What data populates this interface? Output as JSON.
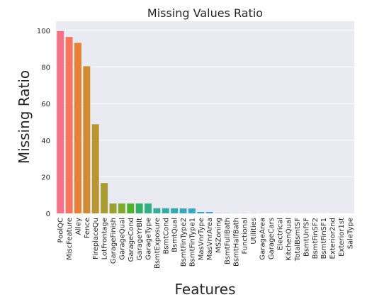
{
  "chart_data": {
    "type": "bar",
    "title": "Missing Values Ratio",
    "xlabel": "Features",
    "ylabel": "Missing Ratio",
    "ylim": [
      0,
      105
    ],
    "yticks": [
      0,
      20,
      40,
      60,
      80,
      100
    ],
    "grid": true,
    "background": "#eaeaf2",
    "categories": [
      "PoolQC",
      "MiscFeature",
      "Alley",
      "Fence",
      "FireplaceQu",
      "LotFrontage",
      "GarageFinish",
      "GarageQual",
      "GarageCond",
      "GarageYrBlt",
      "GarageType",
      "BsmtExposure",
      "BsmtCond",
      "BsmtQual",
      "BsmtFinType2",
      "BsmtFinType1",
      "MasVnrType",
      "MasVnrArea",
      "MSZoning",
      "BsmtFullBath",
      "BsmtHalfBath",
      "Functional",
      "Utilities",
      "GarageArea",
      "GarageCars",
      "Electrical",
      "KitchenQual",
      "TotalBsmtSF",
      "BsmtUnfSF",
      "BsmtFinSF2",
      "BsmtFinSF1",
      "Exterior2nd",
      "Exterior1st",
      "SaleType"
    ],
    "values": [
      99.7,
      96.4,
      93.2,
      80.4,
      48.7,
      16.6,
      5.4,
      5.4,
      5.4,
      5.4,
      5.4,
      2.8,
      2.8,
      2.8,
      2.7,
      2.7,
      0.8,
      0.8,
      0.1,
      0.1,
      0.1,
      0.1,
      0.1,
      0.03,
      0.03,
      0.03,
      0.03,
      0.03,
      0.03,
      0.03,
      0.03,
      0.03,
      0.03,
      0.03
    ],
    "colors": [
      "#f77189",
      "#f7745d",
      "#e98133",
      "#cf8c32",
      "#bb9532",
      "#a99c31",
      "#97a231",
      "#7fa931",
      "#50b131",
      "#32b166",
      "#34af84",
      "#35ad95",
      "#36aba3",
      "#37aaaf",
      "#38a8ba",
      "#39a6c6",
      "#3ba3d3",
      "#4a9ee6",
      "#6e98f4",
      "#8f90f4",
      "#a787f4",
      "#be7ef4",
      "#d374f4",
      "#e865f1",
      "#f45fe0",
      "#f563cb",
      "#f567b8",
      "#f66aa5",
      "#f66c94",
      "#f66e83",
      "#f67073",
      "#f67167",
      "#f67262",
      "#f7735f"
    ]
  }
}
